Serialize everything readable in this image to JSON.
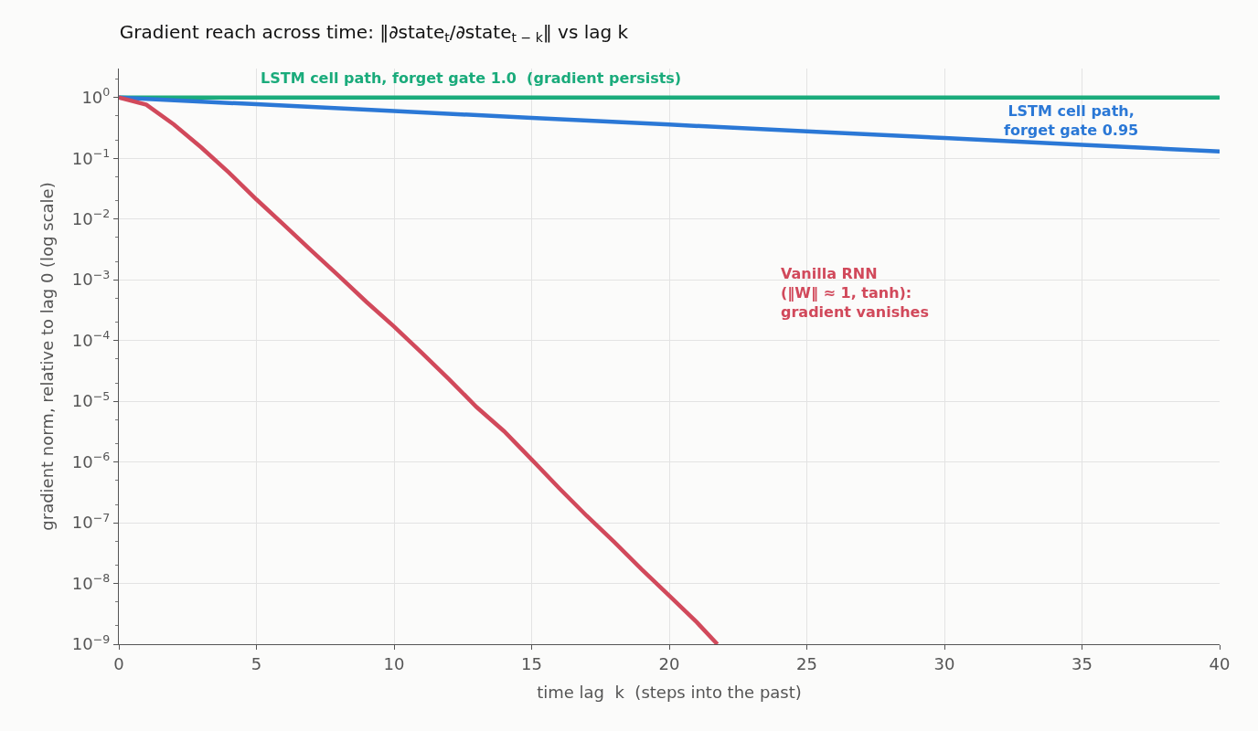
{
  "chart_data": {
    "type": "line",
    "title": "Gradient reach across time: ‖∂state$_{t}$/∂state$_{t − k}$‖ vs lag k",
    "xlabel": "time lag  k  (steps into the past)",
    "ylabel": "gradient norm, relative to lag 0 (log scale)",
    "log": "y",
    "grid": true,
    "legend": false,
    "marker": "none",
    "line_style": "solid",
    "xlim": [
      0,
      40
    ],
    "xticks": [
      0,
      5,
      10,
      15,
      20,
      25,
      30,
      35,
      40
    ],
    "ylim": [
      1e-09,
      3
    ],
    "yticks": [
      {
        "value": 1,
        "label": "10$^{0}$"
      },
      {
        "value": 0.1,
        "label": "10$^{−1}$"
      },
      {
        "value": 0.01,
        "label": "10$^{−2}$"
      },
      {
        "value": 0.001,
        "label": "10$^{−3}$"
      },
      {
        "value": 0.0001,
        "label": "10$^{−4}$"
      },
      {
        "value": 1e-05,
        "label": "10$^{−5}$"
      },
      {
        "value": 1e-06,
        "label": "10$^{−6}$"
      },
      {
        "value": 1e-07,
        "label": "10$^{−7}$"
      },
      {
        "value": 1e-08,
        "label": "10$^{−8}$"
      },
      {
        "value": 1e-09,
        "label": "10$^{−9}$"
      }
    ],
    "series": [
      {
        "name": "LSTM cell path, forget gate 1.0  (gradient persists)",
        "color": "#1aab7b",
        "x": [
          0,
          40
        ],
        "values": [
          1,
          1
        ]
      },
      {
        "name": "LSTM cell path,\nforget gate 0.95",
        "color": "#2b78d6",
        "x": [
          0,
          5,
          10,
          15,
          20,
          25,
          30,
          35,
          40
        ],
        "values": [
          1,
          0.774,
          0.599,
          0.463,
          0.358,
          0.277,
          0.215,
          0.166,
          0.129
        ]
      },
      {
        "name": "Vanilla RNN\n(‖W‖ ≈ 1, tanh):\ngradient vanishes",
        "color": "#d1495b",
        "x": [
          0,
          1,
          2,
          3,
          4,
          5,
          6,
          7,
          8,
          9,
          10,
          11,
          12,
          13,
          14,
          15,
          16,
          17,
          18,
          19,
          20,
          21,
          21.75
        ],
        "values": [
          1,
          0.76,
          0.36,
          0.15,
          0.058,
          0.021,
          0.008,
          0.003,
          0.00115,
          0.00043,
          0.00017,
          6.3e-05,
          2.3e-05,
          8e-06,
          3.2e-06,
          1.1e-06,
          3.7e-07,
          1.3e-07,
          4.8e-08,
          1.7e-08,
          6.3e-09,
          2.3e-09,
          1e-09
        ]
      }
    ]
  }
}
